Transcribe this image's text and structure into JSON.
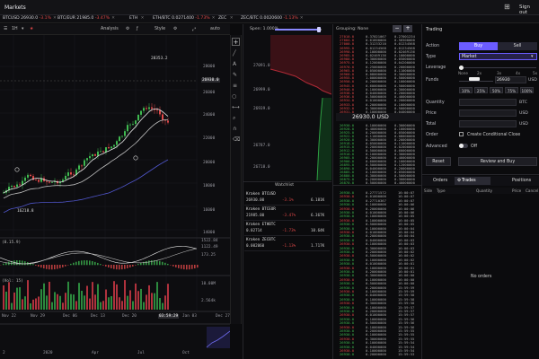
{
  "app": {
    "title": "Markets",
    "signout": "Sign out",
    "menu_icon": "grid-icon"
  },
  "tickers": [
    {
      "name": "BTCUSD 26930.0",
      "chg": "-3.1%",
      "close": "✕"
    },
    {
      "name": "BTC/EUR 21985.0",
      "chg": "-3.47%",
      "close": "✕"
    },
    {
      "name": "ETH",
      "chg": "",
      "close": "✕"
    },
    {
      "name": "ETH/BTC 0.0271400",
      "chg": "-1.73%",
      "close": "✕"
    },
    {
      "name": "ZEC",
      "chg": "",
      "close": "✕"
    },
    {
      "name": "ZEC/BTC 0.0020600",
      "chg": "-1.13%",
      "close": "✕"
    }
  ],
  "chart_toolbar": {
    "interval": "1H",
    "analysis": "Analysis",
    "style": "Style",
    "auto": "auto"
  },
  "price_chart": {
    "y_ticks": [
      "28000",
      "26000",
      "24000",
      "22000",
      "20000",
      "18000",
      "16000",
      "14000"
    ],
    "high_label": "28353.2",
    "low_label": "16218.8",
    "current_price": "26930.0",
    "osc_ticks": [
      "1522.84",
      "1122.49",
      "173.25"
    ],
    "osc_label": "(0.15.9)",
    "vol_ticks": [
      "10.00M",
      "2.564k"
    ],
    "vol_label": "(Vol: 15)",
    "x_ticks": [
      "Nov 22",
      "Nov 29",
      "Dec 06",
      "Dec 13",
      "Dec 20",
      "Dec 27"
    ],
    "time_label": "03:59:29",
    "next_label": "Jan 03",
    "nav_ticks": [
      "2020",
      "Apr",
      "Jul",
      "Oct",
      "2"
    ],
    "tools": [
      "plus-icon",
      "line-icon",
      "text-icon",
      "brush-icon",
      "fib-icon",
      "circle-icon",
      "measure-icon",
      "zoom-icon",
      "magnet-icon",
      "trash-icon"
    ]
  },
  "depth": {
    "spen_label": "Spen: 1.000%",
    "prices": [
      "27091.0",
      "26999.0",
      "26939.0",
      "26787.0",
      "26718.0"
    ]
  },
  "orderbook": {
    "header": "Grouping: None",
    "minus": "−",
    "plus": "+",
    "asks": [
      [
        "27010.0",
        "0.37021067",
        "0.27001234"
      ],
      [
        "27004.0",
        "0.61600000",
        "0.56500000"
      ],
      [
        "27000.0",
        "0.31233210",
        "0.01234568"
      ],
      [
        "26995.0",
        "0.01234568",
        "0.01234568"
      ],
      [
        "26990.0",
        "0.10000000",
        "0.02469136"
      ],
      [
        "26985.0",
        "0.02469136",
        "0.10000000"
      ],
      [
        "26980.0",
        "0.30000000",
        "0.05000000"
      ],
      [
        "26975.0",
        "0.12000000",
        "0.04200000"
      ],
      [
        "26970.0",
        "0.25000000",
        "0.20000000"
      ],
      [
        "26965.0",
        "0.05000000",
        "0.11000000"
      ],
      [
        "26960.0",
        "0.08000000",
        "0.30000000"
      ],
      [
        "26955.0",
        "1.00000000",
        "0.50000000"
      ],
      [
        "26950.0",
        "0.20000000",
        "0.10000000"
      ],
      [
        "26945.0",
        "0.60000000",
        "0.50000000"
      ],
      [
        "26940.0",
        "0.10000000",
        "0.30000000"
      ],
      [
        "26938.0",
        "0.04000000",
        "0.20000000"
      ],
      [
        "26936.0",
        "0.50000000",
        "0.40000000"
      ],
      [
        "26934.0",
        "0.01000000",
        "0.20000000"
      ],
      [
        "26933.0",
        "0.20000000",
        "0.10000000"
      ],
      [
        "26932.0",
        "0.30000000",
        "0.50000000"
      ],
      [
        "26931.0",
        "0.10000000",
        "0.04000000"
      ]
    ],
    "spread_price": "26930.0 USD",
    "bids": [
      [
        "26930.0",
        "0.10000000",
        "0.30000000"
      ],
      [
        "26928.0",
        "0.40000000",
        "0.10000000"
      ],
      [
        "26925.0",
        "0.20000000",
        "0.05000000"
      ],
      [
        "26922.0",
        "0.11000000",
        "0.08000000"
      ],
      [
        "26920.0",
        "0.30000000",
        "0.20000000"
      ],
      [
        "26918.0",
        "0.05000000",
        "0.11000000"
      ],
      [
        "26915.0",
        "0.20000000",
        "0.02000000"
      ],
      [
        "26912.0",
        "0.50000000",
        "0.60000000"
      ],
      [
        "26910.0",
        "0.10000000",
        "0.30000000"
      ],
      [
        "26905.0",
        "0.20000000",
        "0.40000000"
      ],
      [
        "26900.0",
        "0.60000000",
        "0.10000000"
      ],
      [
        "26895.0",
        "0.50000000",
        "0.12000000"
      ],
      [
        "26890.0",
        "0.04000000",
        "0.20000000"
      ],
      [
        "26885.0",
        "0.10000000",
        "0.05000000"
      ],
      [
        "26880.0",
        "0.30000000",
        "0.50000000"
      ],
      [
        "26875.0",
        "0.20000000",
        "0.30000000"
      ],
      [
        "26870.0",
        "0.50000000",
        "0.40000000"
      ]
    ]
  },
  "trades": [
    [
      "26930.0",
      "0.27771572",
      "16:00:07"
    ],
    [
      "26930.0",
      "0.01000000",
      "16:00:07"
    ],
    [
      "26930.0",
      "0.27710367",
      "16:00:07"
    ],
    [
      "26930.0",
      "0.10000000",
      "16:00:06"
    ],
    [
      "26930.0",
      "0.20000000",
      "16:00:06"
    ],
    [
      "26930.0",
      "0.01000000",
      "16:00:06"
    ],
    [
      "26930.0",
      "0.10000000",
      "16:00:05"
    ],
    [
      "26930.0",
      "0.10000000",
      "16:00:05"
    ],
    [
      "26930.0",
      "0.50000000",
      "16:00:05"
    ],
    [
      "26930.0",
      "0.10000000",
      "16:00:04"
    ],
    [
      "26930.0",
      "0.01000000",
      "16:00:04"
    ],
    [
      "26930.0",
      "0.20000000",
      "16:00:04"
    ],
    [
      "26930.0",
      "0.04000000",
      "16:00:03"
    ],
    [
      "26930.0",
      "0.10000000",
      "16:00:03"
    ],
    [
      "26930.0",
      "0.30000000",
      "16:00:03"
    ],
    [
      "26930.0",
      "0.20000000",
      "16:00:02"
    ],
    [
      "26930.0",
      "0.50000000",
      "16:00:02"
    ],
    [
      "26930.0",
      "0.10000000",
      "16:00:02"
    ],
    [
      "26930.0",
      "0.01000000",
      "16:00:01"
    ],
    [
      "26930.0",
      "0.10000000",
      "16:00:01"
    ],
    [
      "26930.0",
      "0.20000000",
      "16:00:01"
    ],
    [
      "26930.0",
      "0.30000000",
      "16:00:00"
    ],
    [
      "26930.0",
      "0.10000000",
      "16:00:00"
    ],
    [
      "26930.0",
      "0.50000000",
      "16:00:00"
    ],
    [
      "26930.0",
      "0.20000000",
      "15:59:59"
    ],
    [
      "26930.0",
      "0.10000000",
      "15:59:59"
    ],
    [
      "26930.0",
      "0.04000000",
      "15:59:58"
    ],
    [
      "26930.0",
      "0.10000000",
      "15:59:58"
    ],
    [
      "26930.0",
      "0.30000000",
      "15:59:58"
    ],
    [
      "26930.0",
      "0.10000000",
      "15:59:57"
    ],
    [
      "26930.0",
      "0.20000000",
      "15:59:57"
    ],
    [
      "26930.0",
      "0.01000000",
      "15:59:57"
    ],
    [
      "26930.0",
      "0.10000000",
      "15:59:56"
    ],
    [
      "26930.0",
      "0.50000000",
      "15:59:56"
    ],
    [
      "26930.0",
      "0.10000000",
      "15:59:56"
    ],
    [
      "26930.0",
      "0.20000000",
      "15:59:55"
    ],
    [
      "26930.0",
      "0.10000000",
      "15:59:55"
    ],
    [
      "26930.0",
      "0.30000000",
      "15:59:55"
    ],
    [
      "26930.0",
      "0.10000000",
      "15:59:54"
    ],
    [
      "26930.0",
      "0.04000000",
      "15:59:54"
    ],
    [
      "26930.0",
      "0.10000000",
      "15:59:54"
    ],
    [
      "26930.0",
      "0.20000000",
      "15:59:53"
    ]
  ],
  "watchlist": {
    "header": "Watchlist",
    "items": [
      {
        "pair": "Kraken BTCUSD",
        "price": "26930.00",
        "chg": "-3.1%",
        "vol": "6.181K"
      },
      {
        "pair": "Kraken BTCEUR",
        "price": "21985.00",
        "chg": "-3.47%",
        "vol": "6.367K"
      },
      {
        "pair": "Kraken ETHBTC",
        "price": "0.02714",
        "chg": "-1.73%",
        "vol": "10.64K"
      },
      {
        "pair": "Kraken ZECBTC",
        "price": "0.002060",
        "chg": "-1.13%",
        "vol": "1.717K"
      }
    ]
  },
  "trading": {
    "header": "Trading",
    "action_label": "Action",
    "buy": "Buy",
    "sell": "Sell",
    "type_label": "Type",
    "type_value": "Market",
    "leverage_label": "Leverage",
    "leverage_ticks": [
      "None",
      "2x",
      "3x",
      "4x",
      "5x"
    ],
    "funds_label": "Funds",
    "funds_value": "26930",
    "funds_unit": "USD",
    "pct_buttons": [
      "10%",
      "25%",
      "50%",
      "75%",
      "100%"
    ],
    "quantity_label": "Quantity",
    "quantity_unit": "BTC",
    "price_label": "Price",
    "price_unit": "USD",
    "total_label": "Total",
    "total_unit": "USD",
    "order_label": "Order",
    "conditional_label": "Create Conditional Close",
    "advanced_label": "Advanced",
    "advanced_value": "Off",
    "reset": "Reset",
    "review": "Review and Buy"
  },
  "orders_panel": {
    "tabs": [
      "Orders",
      "Trades",
      "Positions"
    ],
    "columns": [
      "Side",
      "Type",
      "Quantity",
      "Price",
      "Cancel"
    ],
    "empty": "No orders"
  },
  "colors": {
    "accent": "#6b5cff",
    "up": "#3fb950",
    "down": "#e04848",
    "bg": "#0b0b0d"
  }
}
